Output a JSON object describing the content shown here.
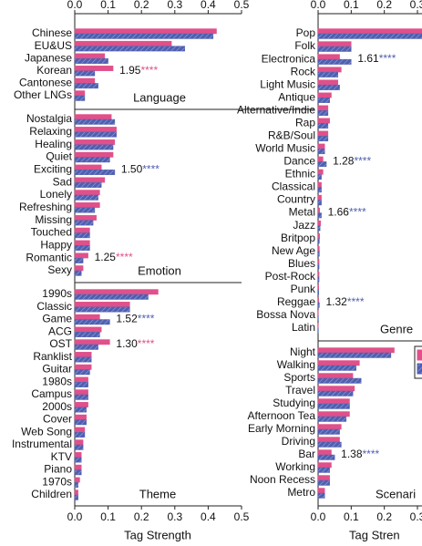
{
  "chart_data": [
    {
      "type": "bar",
      "orientation": "horizontal",
      "title": "Language",
      "categories": [
        "Chinese",
        "EU&US",
        "Japanese",
        "Korean",
        "Cantonese",
        "Other LNGs"
      ],
      "series": [
        {
          "color": "#e0508a",
          "values": [
            0.425,
            0.29,
            0.09,
            0.115,
            0.06,
            0.03
          ]
        },
        {
          "color": "#4f5fb0",
          "hatch": true,
          "values": [
            0.415,
            0.33,
            0.1,
            0.06,
            0.07,
            0.03
          ]
        }
      ],
      "annotations": [
        null,
        null,
        null,
        {
          "text": "1.95",
          "stars": "****",
          "color": "#e0508a"
        },
        null,
        null
      ],
      "xlim": [
        0,
        0.5
      ],
      "xticks": [
        {
          "value": 0,
          "label": "0.0"
        },
        {
          "value": 0.1,
          "label": "0.1"
        },
        {
          "value": 0.2,
          "label": "0.2"
        },
        {
          "value": 0.3,
          "label": "0.3"
        },
        {
          "value": 0.4,
          "label": "0.4"
        },
        {
          "value": 0.5,
          "label": "0.5"
        }
      ]
    },
    {
      "type": "bar",
      "orientation": "horizontal",
      "title": "Emotion",
      "categories": [
        "Nostalgia",
        "Relaxing",
        "Healing",
        "Quiet",
        "Exciting",
        "Sad",
        "Lonely",
        "Refreshing",
        "Missing",
        "Touched",
        "Happy",
        "Romantic",
        "Sexy"
      ],
      "series": [
        {
          "color": "#e0508a",
          "values": [
            0.11,
            0.125,
            0.12,
            0.115,
            0.08,
            0.09,
            0.075,
            0.075,
            0.065,
            0.045,
            0.045,
            0.04,
            0.025
          ]
        },
        {
          "color": "#4f5fb0",
          "hatch": true,
          "values": [
            0.12,
            0.125,
            0.115,
            0.105,
            0.12,
            0.08,
            0.07,
            0.06,
            0.055,
            0.045,
            0.045,
            0.025,
            0.02
          ]
        }
      ],
      "annotations": [
        null,
        null,
        null,
        null,
        {
          "text": "1.50",
          "stars": "****",
          "color": "#4f5fb0"
        },
        null,
        null,
        null,
        null,
        null,
        null,
        {
          "text": "1.25",
          "stars": "****",
          "color": "#e0508a"
        },
        null
      ],
      "xlim": [
        0,
        0.5
      ]
    },
    {
      "type": "bar",
      "orientation": "horizontal",
      "title": "Theme",
      "xlabel": "Tag Strength",
      "categories": [
        "1990s",
        "Classic",
        "Game",
        "ACG",
        "OST",
        "Ranklist",
        "Guitar",
        "1980s",
        "Campus",
        "2000s",
        "Cover",
        "Web Song",
        "Instrumental",
        "KTV",
        "Piano",
        "1970s",
        "Children"
      ],
      "series": [
        {
          "color": "#e0508a",
          "values": [
            0.25,
            0.165,
            0.075,
            0.08,
            0.105,
            0.05,
            0.05,
            0.04,
            0.04,
            0.04,
            0.035,
            0.03,
            0.025,
            0.02,
            0.02,
            0.015,
            0.01
          ]
        },
        {
          "color": "#4f5fb0",
          "hatch": true,
          "values": [
            0.22,
            0.165,
            0.105,
            0.075,
            0.07,
            0.05,
            0.045,
            0.04,
            0.04,
            0.035,
            0.035,
            0.03,
            0.025,
            0.02,
            0.02,
            0.01,
            0.01
          ]
        }
      ],
      "annotations": [
        null,
        null,
        {
          "text": "1.52",
          "stars": "****",
          "color": "#4f5fb0"
        },
        null,
        {
          "text": "1.30",
          "stars": "****",
          "color": "#e0508a"
        },
        null,
        null,
        null,
        null,
        null,
        null,
        null,
        null,
        null,
        null,
        null,
        null
      ],
      "xlim": [
        0,
        0.5
      ],
      "xticks": [
        {
          "value": 0,
          "label": "0.0"
        },
        {
          "value": 0.1,
          "label": "0.1"
        },
        {
          "value": 0.2,
          "label": "0.2"
        },
        {
          "value": 0.3,
          "label": "0.3"
        },
        {
          "value": 0.4,
          "label": "0.4"
        },
        {
          "value": 0.5,
          "label": "0.5"
        }
      ]
    },
    {
      "type": "bar",
      "orientation": "horizontal",
      "title": "Genre",
      "categories": [
        "Pop",
        "Folk",
        "Electronica",
        "Rock",
        "Light Music",
        "Antique",
        "Alternative/Indie",
        "Rap",
        "R&B/Soul",
        "World Music",
        "Dance",
        "Ethnic",
        "Classical",
        "Country",
        "Metal",
        "Jazz",
        "Britpop",
        "New Age",
        "Blues",
        "Post-Rock",
        "Punk",
        "Reggae",
        "Bossa Nova",
        "Latin"
      ],
      "series": [
        {
          "color": "#e0508a",
          "values": [
            0.33,
            0.1,
            0.065,
            0.07,
            0.06,
            0.04,
            0.03,
            0.035,
            0.03,
            0.02,
            0.015,
            0.015,
            0.01,
            0.01,
            0.005,
            0.008,
            0.005,
            0.004,
            0.003,
            0.003,
            0.002,
            0.002,
            0.001,
            0.001
          ]
        },
        {
          "color": "#4f5fb0",
          "hatch": true,
          "values": [
            0.33,
            0.1,
            0.1,
            0.06,
            0.065,
            0.035,
            0.03,
            0.03,
            0.03,
            0.02,
            0.025,
            0.01,
            0.01,
            0.01,
            0.01,
            0.006,
            0.004,
            0.004,
            0.003,
            0.003,
            0.002,
            0.004,
            0.001,
            0.001
          ]
        }
      ],
      "annotations": [
        null,
        null,
        {
          "text": "1.61",
          "stars": "****",
          "color": "#4f5fb0"
        },
        null,
        null,
        null,
        null,
        null,
        null,
        null,
        {
          "text": "1.28",
          "stars": "****",
          "color": "#4f5fb0"
        },
        null,
        null,
        null,
        {
          "text": "1.66",
          "stars": "****",
          "color": "#4f5fb0"
        },
        null,
        null,
        null,
        null,
        null,
        null,
        {
          "text": "1.32",
          "stars": "****",
          "color": "#4f5fb0"
        },
        null,
        null
      ],
      "xlim": [
        0,
        0.3
      ],
      "xticks": [
        {
          "value": 0,
          "label": "0.0"
        },
        {
          "value": 0.1,
          "label": "0.1"
        },
        {
          "value": 0.2,
          "label": "0.2"
        },
        {
          "value": 0.3,
          "label": "0.3"
        }
      ]
    },
    {
      "type": "bar",
      "orientation": "horizontal",
      "title": "Scenari",
      "xlabel": "Tag Stren",
      "legend": "right",
      "categories": [
        "Night",
        "Walking",
        "Sports",
        "Travel",
        "Studying",
        "Afternoon Tea",
        "Early Morning",
        "Driving",
        "Bar",
        "Working",
        "Noon Recess",
        "Metro"
      ],
      "series": [
        {
          "color": "#e0508a",
          "values": [
            0.23,
            0.125,
            0.105,
            0.11,
            0.095,
            0.095,
            0.07,
            0.065,
            0.04,
            0.04,
            0.035,
            0.02
          ]
        },
        {
          "color": "#4f5fb0",
          "hatch": true,
          "values": [
            0.22,
            0.115,
            0.13,
            0.105,
            0.095,
            0.085,
            0.065,
            0.07,
            0.05,
            0.035,
            0.035,
            0.02
          ]
        }
      ],
      "annotations": [
        null,
        null,
        null,
        null,
        null,
        null,
        null,
        null,
        {
          "text": "1.38",
          "stars": "****",
          "color": "#4f5fb0"
        },
        null,
        null,
        null
      ],
      "xlim": [
        0,
        0.3
      ],
      "xticks": [
        {
          "value": 0,
          "label": "0.0"
        },
        {
          "value": 0.1,
          "label": "0.1"
        },
        {
          "value": 0.2,
          "label": "0.2"
        },
        {
          "value": 0.3,
          "label": "0.3"
        }
      ]
    }
  ]
}
